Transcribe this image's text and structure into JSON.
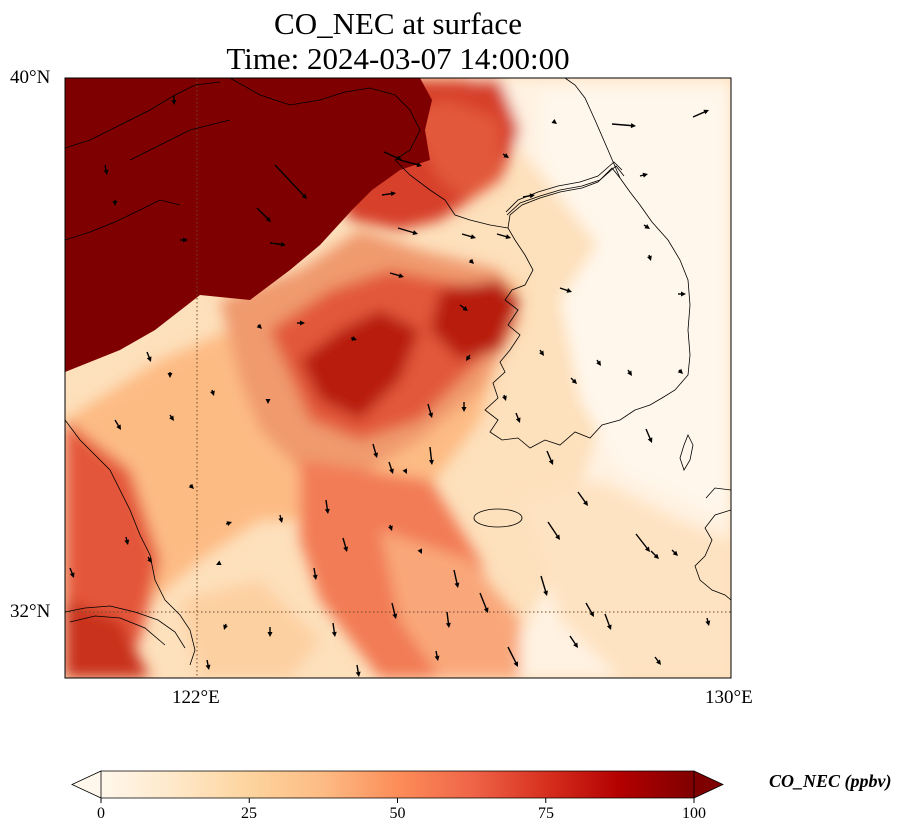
{
  "title": {
    "line1": "CO_NEC at surface",
    "line2": "Time: 2024-03-07 14:00:00"
  },
  "axes": {
    "lat_ticks": [
      {
        "label": "40°N",
        "value": 40
      },
      {
        "label": "32°N",
        "value": 32
      }
    ],
    "lon_ticks": [
      {
        "label": "122°E",
        "value": 122
      },
      {
        "label": "130°E",
        "value": 130
      }
    ],
    "lon_range": [
      120,
      130
    ],
    "lat_range": [
      31,
      40
    ],
    "gridlines": "dotted at 122°E and 32°N"
  },
  "colorbar": {
    "label": "CO_NEC (ppbv)",
    "ticks": [
      "0",
      "25",
      "50",
      "75",
      "100"
    ],
    "range": [
      0,
      100
    ],
    "extend": "both",
    "colormap": [
      "#fff7ec",
      "#fee8c8",
      "#fdd49e",
      "#fdbb84",
      "#fc8d59",
      "#ef6548",
      "#d7301f",
      "#b30000",
      "#7f0000"
    ]
  },
  "colors": {
    "max_color": "#7f0000",
    "min_color": "#fff7ec",
    "coastline": "#000000"
  }
}
